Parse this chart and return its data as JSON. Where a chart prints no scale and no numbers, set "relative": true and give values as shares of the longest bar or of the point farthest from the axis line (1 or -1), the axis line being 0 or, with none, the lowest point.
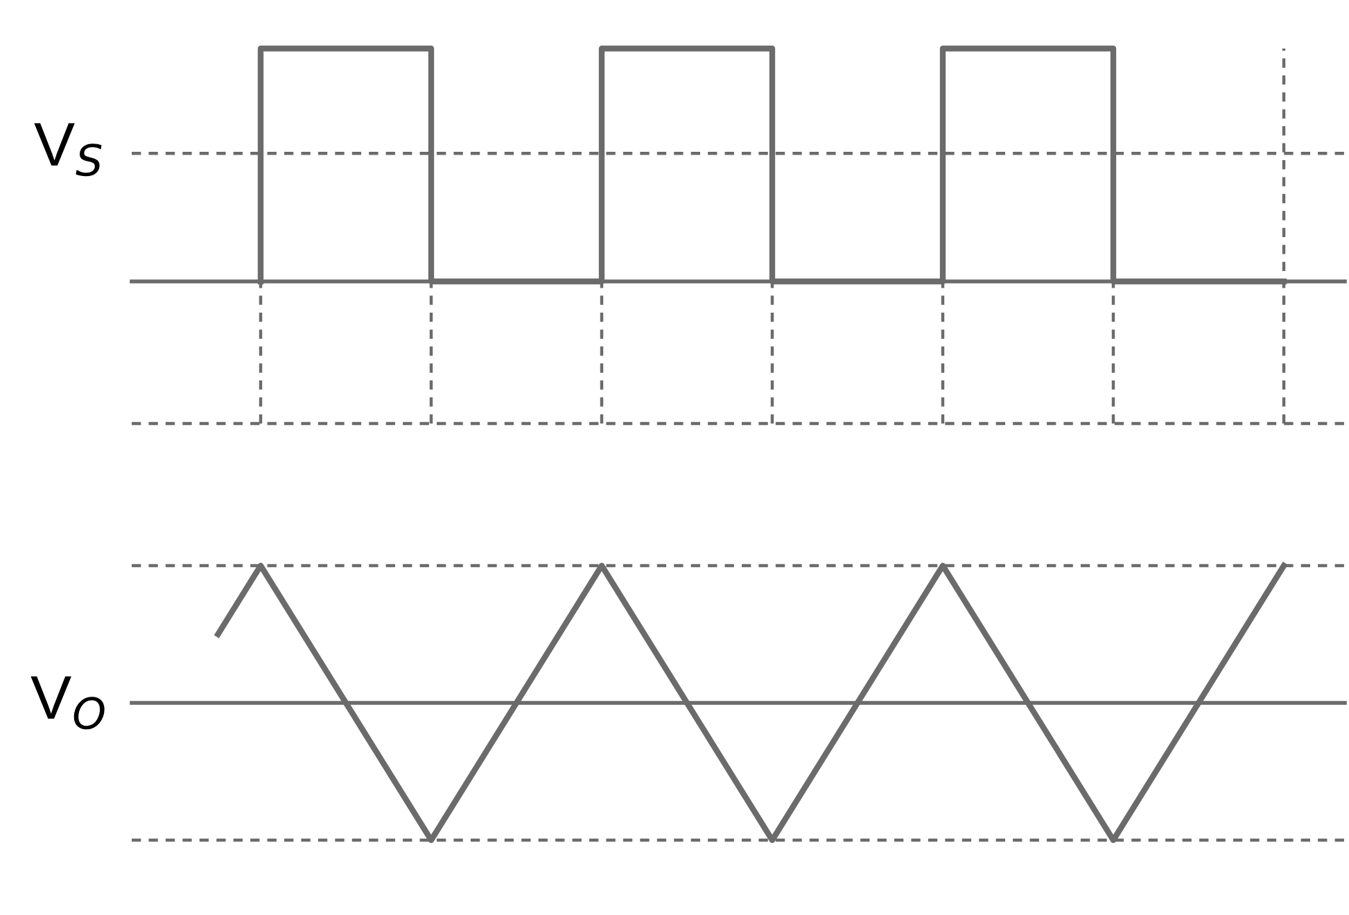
{
  "chart_data": [
    {
      "type": "step",
      "relative": true,
      "ylabel": "V$_{S}$",
      "categories": [
        null,
        null,
        null,
        null,
        null,
        null,
        null
      ],
      "series": [
        {
          "color": "#6b6b6b",
          "values": [
            0,
            1,
            0,
            1,
            0,
            1,
            0
          ]
        }
      ],
      "grid": "x",
      "legend": false,
      "ref_lines": [
        {
          "axis": "y",
          "value": 0.55,
          "color": "#6b6b6b",
          "line_style": "dashed"
        },
        {
          "axis": "y",
          "value": -0.61,
          "color": "#6b6b6b",
          "line_style": "dashed"
        }
      ]
    },
    {
      "type": "line",
      "relative": true,
      "ylabel": "V$_{O}$",
      "categories": [
        null,
        null,
        null,
        null,
        null,
        null,
        null,
        null,
        null,
        null,
        null,
        null,
        null,
        null,
        null,
        null,
        null,
        null,
        null,
        null,
        null,
        null,
        null,
        null,
        null,
        null
      ],
      "series": [
        {
          "color": "#6b6b6b",
          "values": [
            0.5,
            1,
            0.5,
            0,
            -0.5,
            -1,
            -0.5,
            0,
            0.5,
            1,
            0.5,
            0,
            -0.5,
            -1,
            -0.5,
            0,
            0.5,
            1,
            0.5,
            0,
            -0.5,
            -1,
            -0.5,
            0,
            0.5,
            1
          ]
        }
      ],
      "legend": false,
      "ref_lines": [
        {
          "axis": "y",
          "value": 1,
          "color": "#6b6b6b",
          "line_style": "dashed"
        },
        {
          "axis": "y",
          "value": -1,
          "color": "#6b6b6b",
          "line_style": "dashed"
        }
      ]
    }
  ]
}
